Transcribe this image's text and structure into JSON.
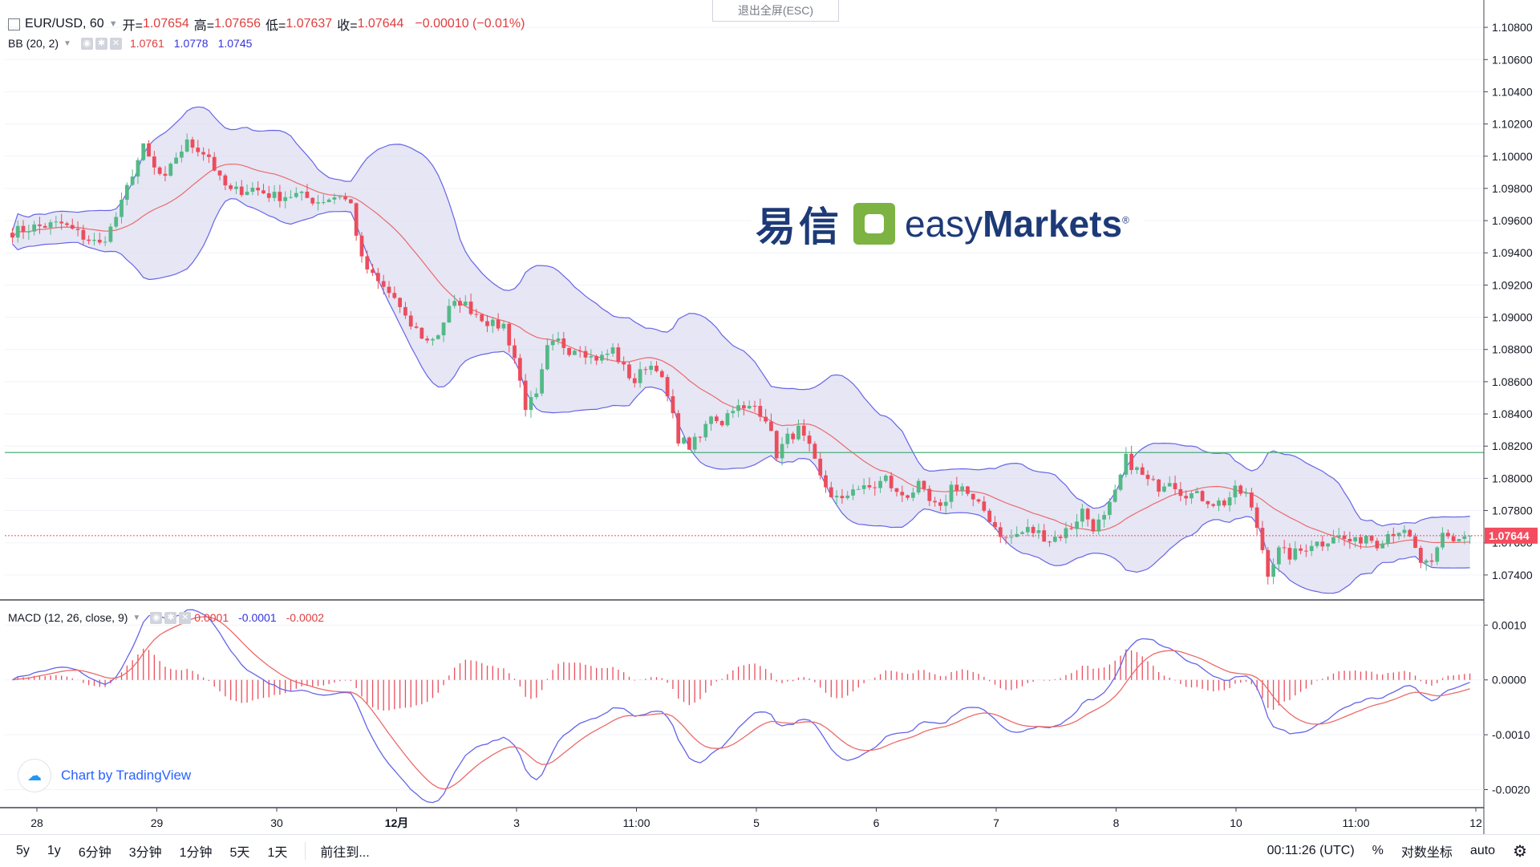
{
  "header": {
    "symbol": "EUR/USD, 60",
    "open_label": "开=",
    "open": "1.07654",
    "high_label": "高=",
    "high": "1.07656",
    "low_label": "低=",
    "low": "1.07637",
    "close_label": "收=",
    "close": "1.07644",
    "change": "−0.00010 (−0.01%)"
  },
  "bb_legend": {
    "name": "BB (20, 2)",
    "basis": "1.0761",
    "upper": "1.0778",
    "lower": "1.0745"
  },
  "macd_legend": {
    "name": "MACD (12, 26, close, 9)",
    "hist": "0.0001",
    "macd": "-0.0001",
    "signal": "-0.0002"
  },
  "top_button": "退出全屏(ESC)",
  "watermark": {
    "cn": "易信",
    "en_light": "easy",
    "en_bold": "Markets",
    "reg": "®"
  },
  "tradingview": "Chart by TradingView",
  "bottom": {
    "ranges": [
      "5y",
      "1y",
      "6分钟",
      "3分钟",
      "1分钟",
      "5天",
      "1天"
    ],
    "goto": "前往到...",
    "time": "00:11:26 (UTC)",
    "percent": "%",
    "log": "对数坐标",
    "auto": "auto"
  },
  "colors": {
    "up": "#53b987",
    "down": "#eb4d5c",
    "band_fill": "#d9d9ef",
    "band_line": "#6565e8",
    "basis": "#eb6a6a",
    "hline": "#4caf7a",
    "price_tag": "#f44c5e"
  },
  "chart_data": [
    {
      "type": "candlestick",
      "title": "EUR/USD, 60",
      "price_axis_labels": [
        "1.10800",
        "1.10600",
        "1.10400",
        "1.10200",
        "1.10000",
        "1.09800",
        "1.09600",
        "1.09400",
        "1.09200",
        "1.09000",
        "1.08800",
        "1.08600",
        "1.08400",
        "1.08200",
        "1.08000",
        "1.07800",
        "1.07600",
        "1.07400"
      ],
      "ylim": [
        1.0726,
        1.1092
      ],
      "time_axis_labels": [
        "28",
        "29",
        "30",
        "12月",
        "3",
        "11:00",
        "5",
        "6",
        "7",
        "8",
        "10",
        "11:00",
        "12"
      ],
      "horizontal_line": 1.0816,
      "last_price": 1.07644,
      "last_price_label": "1.07644",
      "close_path": [
        [
          0,
          1.0953
        ],
        [
          4,
          1.0956
        ],
        [
          9,
          1.0958
        ],
        [
          13,
          1.095
        ],
        [
          16,
          1.0945
        ],
        [
          18,
          1.0955
        ],
        [
          20,
          1.097
        ],
        [
          22,
          1.099
        ],
        [
          24,
          1.1005
        ],
        [
          26,
          1.0992
        ],
        [
          28,
          1.0985
        ],
        [
          30,
          1.1
        ],
        [
          32,
          1.1008
        ],
        [
          34,
          1.1005
        ],
        [
          36,
          1.1
        ],
        [
          38,
          1.0985
        ],
        [
          40,
          1.0978
        ],
        [
          44,
          1.098
        ],
        [
          48,
          1.0975
        ],
        [
          52,
          1.0976
        ],
        [
          56,
          1.0972
        ],
        [
          60,
          1.0976
        ],
        [
          62,
          1.097
        ],
        [
          64,
          1.0935
        ],
        [
          66,
          1.0925
        ],
        [
          68,
          1.0918
        ],
        [
          70,
          1.0912
        ],
        [
          72,
          1.0898
        ],
        [
          74,
          1.0892
        ],
        [
          76,
          1.0885
        ],
        [
          78,
          1.089
        ],
        [
          80,
          1.0905
        ],
        [
          82,
          1.091
        ],
        [
          84,
          1.0905
        ],
        [
          86,
          1.09
        ],
        [
          88,
          1.0895
        ],
        [
          90,
          1.0895
        ],
        [
          92,
          1.0875
        ],
        [
          94,
          1.0845
        ],
        [
          96,
          1.085
        ],
        [
          98,
          1.088
        ],
        [
          100,
          1.0885
        ],
        [
          102,
          1.088
        ],
        [
          104,
          1.0882
        ],
        [
          106,
          1.0875
        ],
        [
          108,
          1.0875
        ],
        [
          110,
          1.088
        ],
        [
          112,
          1.0868
        ],
        [
          114,
          1.086
        ],
        [
          116,
          1.087
        ],
        [
          118,
          1.087
        ],
        [
          120,
          1.085
        ],
        [
          122,
          1.0825
        ],
        [
          124,
          1.082
        ],
        [
          126,
          1.0825
        ],
        [
          128,
          1.084
        ],
        [
          130,
          1.0835
        ],
        [
          132,
          1.0845
        ],
        [
          134,
          1.0842
        ],
        [
          136,
          1.0845
        ],
        [
          138,
          1.0838
        ],
        [
          140,
          1.0815
        ],
        [
          142,
          1.0825
        ],
        [
          144,
          1.083
        ],
        [
          146,
          1.0818
        ],
        [
          148,
          1.08
        ],
        [
          150,
          1.079
        ],
        [
          152,
          1.0785
        ],
        [
          154,
          1.0795
        ],
        [
          156,
          1.0793
        ],
        [
          158,
          1.0795
        ],
        [
          160,
          1.08
        ],
        [
          162,
          1.079
        ],
        [
          164,
          1.079
        ],
        [
          166,
          1.0795
        ],
        [
          168,
          1.0785
        ],
        [
          170,
          1.078
        ],
        [
          172,
          1.0795
        ],
        [
          174,
          1.0795
        ],
        [
          176,
          1.0785
        ],
        [
          178,
          1.078
        ],
        [
          180,
          1.077
        ],
        [
          182,
          1.0762
        ],
        [
          184,
          1.0765
        ],
        [
          186,
          1.0768
        ],
        [
          188,
          1.0766
        ],
        [
          190,
          1.0762
        ],
        [
          192,
          1.0765
        ],
        [
          194,
          1.077
        ],
        [
          196,
          1.078
        ],
        [
          198,
          1.077
        ],
        [
          200,
          1.0775
        ],
        [
          202,
          1.079
        ],
        [
          204,
          1.0812
        ],
        [
          206,
          1.0805
        ],
        [
          208,
          1.0798
        ],
        [
          210,
          1.0795
        ],
        [
          212,
          1.08
        ],
        [
          214,
          1.0792
        ],
        [
          216,
          1.079
        ],
        [
          218,
          1.0788
        ],
        [
          220,
          1.0785
        ],
        [
          222,
          1.0785
        ],
        [
          224,
          1.0792
        ],
        [
          226,
          1.079
        ],
        [
          228,
          1.077
        ],
        [
          230,
          1.0742
        ],
        [
          232,
          1.0755
        ],
        [
          234,
          1.0752
        ],
        [
          236,
          1.0755
        ],
        [
          238,
          1.076
        ],
        [
          240,
          1.076
        ],
        [
          242,
          1.0765
        ],
        [
          244,
          1.0762
        ],
        [
          246,
          1.076
        ],
        [
          248,
          1.0765
        ],
        [
          250,
          1.076
        ],
        [
          252,
          1.0766
        ],
        [
          254,
          1.0768
        ],
        [
          256,
          1.0762
        ],
        [
          258,
          1.0748
        ],
        [
          260,
          1.0745
        ],
        [
          262,
          1.0765
        ],
        [
          264,
          1.0762
        ],
        [
          266,
          1.0764
        ]
      ]
    },
    {
      "type": "macd",
      "title": "MACD (12, 26, close, 9)",
      "ylim": [
        -0.0023,
        0.0014
      ],
      "axis_labels": [
        "0.0010",
        "0.0000",
        "-0.0010",
        "-0.0020"
      ]
    }
  ]
}
